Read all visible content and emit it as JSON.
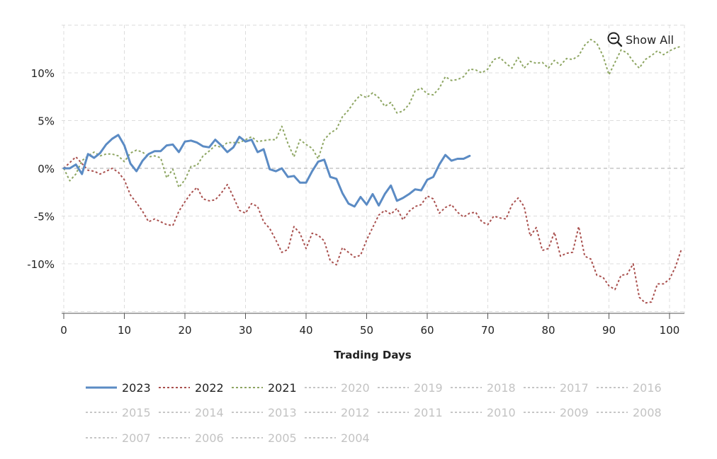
{
  "controls": {
    "show_all_label": "Show All"
  },
  "chart_data": {
    "type": "line",
    "title": "",
    "xlabel": "Trading Days",
    "ylabel": "",
    "xlim": [
      0,
      102.5
    ],
    "ylim": [
      -15,
      15
    ],
    "xticks": [
      0,
      10,
      20,
      30,
      40,
      50,
      60,
      70,
      80,
      90,
      100
    ],
    "xtick_labels": [
      "0",
      "10",
      "20",
      "30",
      "40",
      "50",
      "60",
      "70",
      "80",
      "90",
      "100"
    ],
    "yticks": [
      10,
      5,
      0,
      -5,
      -10
    ],
    "ytick_labels": [
      "10%",
      "5%",
      "0%",
      "-5%",
      "-10%"
    ],
    "grid": true,
    "legend_position": "bottom",
    "series": [
      {
        "name": "2023",
        "color": "#5b8bc4",
        "style": "solid",
        "active": true,
        "x": [
          0,
          1,
          2,
          3,
          4,
          5,
          6,
          7,
          8,
          9,
          10,
          11,
          12,
          13,
          14,
          15,
          16,
          17,
          18,
          19,
          20,
          21,
          22,
          23,
          24,
          25,
          26,
          27,
          28,
          29,
          30,
          31,
          32,
          33,
          34,
          35,
          36,
          37,
          38,
          39,
          40,
          41,
          42,
          43,
          44,
          45,
          46,
          47,
          48,
          49,
          50,
          51,
          52,
          53,
          54,
          55,
          56,
          57,
          58,
          59,
          60,
          61,
          62,
          63,
          64,
          65,
          66,
          67
        ],
        "y": [
          0.0,
          0.0,
          0.4,
          -0.6,
          1.5,
          1.1,
          1.6,
          2.5,
          3.1,
          3.5,
          2.4,
          0.5,
          -0.3,
          0.8,
          1.5,
          1.8,
          1.8,
          2.4,
          2.5,
          1.7,
          2.8,
          2.9,
          2.7,
          2.3,
          2.2,
          3.0,
          2.4,
          1.7,
          2.2,
          3.3,
          2.8,
          3.0,
          1.7,
          2.0,
          -0.1,
          -0.3,
          0.0,
          -0.9,
          -0.8,
          -1.5,
          -1.5,
          -0.3,
          0.7,
          0.9,
          -0.9,
          -1.1,
          -2.6,
          -3.7,
          -4.0,
          -3.0,
          -3.8,
          -2.7,
          -3.9,
          -2.7,
          -1.8,
          -3.4,
          -3.1,
          -2.7,
          -2.2,
          -2.3,
          -1.2,
          -0.9,
          0.4,
          1.4,
          0.8,
          1.0,
          1.0,
          1.3
        ]
      },
      {
        "name": "2022",
        "color": "#a9504e",
        "style": "dotted",
        "active": true,
        "x": [
          0,
          1,
          2,
          3,
          4,
          5,
          6,
          7,
          8,
          9,
          10,
          11,
          12,
          13,
          14,
          15,
          16,
          17,
          18,
          19,
          20,
          21,
          22,
          23,
          24,
          25,
          26,
          27,
          28,
          29,
          30,
          31,
          32,
          33,
          34,
          35,
          36,
          37,
          38,
          39,
          40,
          41,
          42,
          43,
          44,
          45,
          46,
          47,
          48,
          49,
          50,
          51,
          52,
          53,
          54,
          55,
          56,
          57,
          58,
          59,
          60,
          61,
          62,
          63,
          64,
          65,
          66,
          67,
          68,
          69,
          70,
          71,
          72,
          73,
          74,
          75,
          76,
          77,
          78,
          79,
          80,
          81,
          82,
          83,
          84,
          85,
          86,
          87,
          88,
          89,
          90,
          91,
          92,
          93,
          94,
          95,
          96,
          97,
          98,
          99,
          100,
          101,
          102
        ],
        "y": [
          0.0,
          0.6,
          1.2,
          0.5,
          -0.2,
          -0.3,
          -0.6,
          -0.3,
          0.0,
          -0.4,
          -1.2,
          -2.8,
          -3.6,
          -4.5,
          -5.6,
          -5.3,
          -5.6,
          -5.9,
          -6.0,
          -4.5,
          -3.5,
          -2.6,
          -2.0,
          -3.2,
          -3.4,
          -3.3,
          -2.6,
          -1.7,
          -3.0,
          -4.4,
          -4.7,
          -3.7,
          -4.0,
          -5.6,
          -6.3,
          -7.5,
          -8.8,
          -8.5,
          -6.1,
          -6.8,
          -8.4,
          -6.8,
          -7.0,
          -7.6,
          -9.7,
          -10.1,
          -8.3,
          -8.8,
          -9.3,
          -9.1,
          -7.5,
          -6.2,
          -4.9,
          -4.4,
          -4.8,
          -4.2,
          -5.4,
          -4.5,
          -4.0,
          -3.8,
          -2.9,
          -3.2,
          -4.7,
          -4.1,
          -3.8,
          -4.6,
          -5.1,
          -4.7,
          -4.6,
          -5.6,
          -5.9,
          -5.0,
          -5.2,
          -5.3,
          -3.8,
          -3.1,
          -4.0,
          -7.1,
          -6.2,
          -8.6,
          -8.4,
          -6.7,
          -9.2,
          -8.9,
          -8.8,
          -6.1,
          -9.2,
          -9.5,
          -11.2,
          -11.4,
          -12.3,
          -12.7,
          -11.2,
          -11.1,
          -10.0,
          -13.5,
          -14.1,
          -14.0,
          -12.1,
          -12.1,
          -11.6,
          -10.3,
          -8.4
        ]
      },
      {
        "name": "2021",
        "color": "#8ea663",
        "style": "dotted",
        "active": true,
        "x": [
          0,
          1,
          2,
          3,
          4,
          5,
          6,
          7,
          8,
          9,
          10,
          11,
          12,
          13,
          14,
          15,
          16,
          17,
          18,
          19,
          20,
          21,
          22,
          23,
          24,
          25,
          26,
          27,
          28,
          29,
          30,
          31,
          32,
          33,
          34,
          35,
          36,
          37,
          38,
          39,
          40,
          41,
          42,
          43,
          44,
          45,
          46,
          47,
          48,
          49,
          50,
          51,
          52,
          53,
          54,
          55,
          56,
          57,
          58,
          59,
          60,
          61,
          62,
          63,
          64,
          65,
          66,
          67,
          68,
          69,
          70,
          71,
          72,
          73,
          74,
          75,
          76,
          77,
          78,
          79,
          80,
          81,
          82,
          83,
          84,
          85,
          86,
          87,
          88,
          89,
          90,
          91,
          92,
          93,
          94,
          95,
          96,
          97,
          98,
          99,
          100,
          101,
          102
        ],
        "y": [
          0.0,
          -1.3,
          -0.6,
          0.8,
          1.3,
          1.7,
          1.3,
          1.5,
          1.5,
          1.3,
          0.7,
          1.6,
          1.9,
          1.7,
          1.2,
          1.3,
          1.1,
          -1.0,
          -0.1,
          -2.0,
          -1.2,
          0.2,
          0.3,
          1.3,
          1.8,
          2.4,
          2.2,
          2.7,
          2.7,
          2.7,
          3.0,
          3.3,
          2.8,
          2.9,
          3.0,
          3.0,
          4.4,
          2.6,
          1.2,
          3.0,
          2.5,
          2.1,
          1.0,
          3.0,
          3.7,
          4.1,
          5.4,
          6.1,
          7.0,
          7.7,
          7.4,
          7.9,
          7.4,
          6.5,
          6.9,
          5.8,
          6.0,
          6.7,
          8.1,
          8.4,
          7.8,
          7.7,
          8.4,
          9.6,
          9.2,
          9.3,
          9.6,
          10.4,
          10.3,
          10.0,
          10.4,
          11.4,
          11.6,
          11.0,
          10.5,
          11.6,
          10.5,
          11.2,
          11.0,
          11.1,
          10.5,
          11.3,
          10.8,
          11.5,
          11.4,
          11.8,
          12.9,
          13.5,
          13.1,
          11.8,
          9.8,
          11.1,
          12.4,
          12.1,
          11.2,
          10.5,
          11.4,
          11.8,
          12.3,
          11.9,
          12.3,
          12.6,
          12.8
        ]
      },
      {
        "name": "2020",
        "color": "#bdbdbd",
        "style": "dotted",
        "active": false
      },
      {
        "name": "2019",
        "color": "#bdbdbd",
        "style": "dotted",
        "active": false
      },
      {
        "name": "2018",
        "color": "#bdbdbd",
        "style": "dotted",
        "active": false
      },
      {
        "name": "2017",
        "color": "#bdbdbd",
        "style": "dotted",
        "active": false
      },
      {
        "name": "2016",
        "color": "#bdbdbd",
        "style": "dotted",
        "active": false
      },
      {
        "name": "2015",
        "color": "#bdbdbd",
        "style": "dotted",
        "active": false
      },
      {
        "name": "2014",
        "color": "#bdbdbd",
        "style": "dotted",
        "active": false
      },
      {
        "name": "2013",
        "color": "#bdbdbd",
        "style": "dotted",
        "active": false
      },
      {
        "name": "2012",
        "color": "#bdbdbd",
        "style": "dotted",
        "active": false
      },
      {
        "name": "2011",
        "color": "#bdbdbd",
        "style": "dotted",
        "active": false
      },
      {
        "name": "2010",
        "color": "#bdbdbd",
        "style": "dotted",
        "active": false
      },
      {
        "name": "2009",
        "color": "#bdbdbd",
        "style": "dotted",
        "active": false
      },
      {
        "name": "2008",
        "color": "#bdbdbd",
        "style": "dotted",
        "active": false
      },
      {
        "name": "2007",
        "color": "#bdbdbd",
        "style": "dotted",
        "active": false
      },
      {
        "name": "2006",
        "color": "#bdbdbd",
        "style": "dotted",
        "active": false
      },
      {
        "name": "2005",
        "color": "#bdbdbd",
        "style": "dotted",
        "active": false
      },
      {
        "name": "2004",
        "color": "#bdbdbd",
        "style": "dotted",
        "active": false
      }
    ]
  }
}
